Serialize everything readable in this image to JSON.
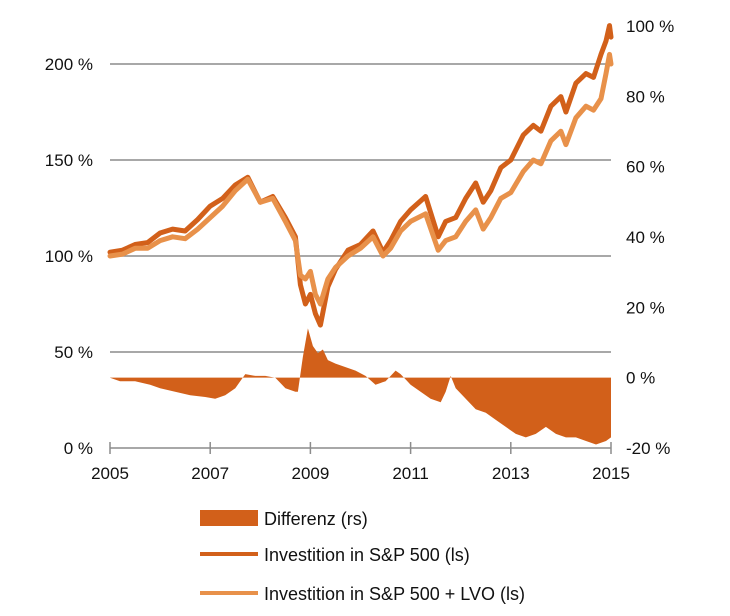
{
  "chart_data": {
    "type": "line",
    "title": "",
    "xlabel": "",
    "ylabel_left": "",
    "ylabel_right": "",
    "x_ticks": [
      "2005",
      "2007",
      "2009",
      "2011",
      "2013",
      "2015"
    ],
    "x_range": [
      2005,
      2015
    ],
    "y_left": {
      "range": [
        0,
        200
      ],
      "ticks": [
        0,
        50,
        100,
        150,
        200
      ],
      "tick_labels": [
        "0 %",
        "50 %",
        "100 %",
        "150 %",
        "200 %"
      ]
    },
    "y_right": {
      "range": [
        -20,
        100
      ],
      "ticks": [
        -20,
        0,
        20,
        40,
        60,
        80,
        100
      ],
      "tick_labels": [
        "-20 %",
        "0 %",
        "20 %",
        "40 %",
        "60 %",
        "80 %",
        "100 %"
      ]
    },
    "grid": true,
    "legend_position": "bottom",
    "colors": {
      "differenz": "#D2601A",
      "sp500": "#D2601A",
      "sp500_lvo": "#E8914A",
      "grid": "#8c8c8c",
      "axis": "#8c8c8c"
    },
    "series": [
      {
        "name": "Differenz (rs)",
        "type": "area",
        "axis": "right",
        "x": [
          2005.0,
          2005.2,
          2005.5,
          2005.8,
          2006.0,
          2006.3,
          2006.6,
          2006.9,
          2007.1,
          2007.3,
          2007.5,
          2007.7,
          2007.9,
          2008.1,
          2008.3,
          2008.5,
          2008.7,
          2008.75,
          2008.85,
          2008.95,
          2009.05,
          2009.15,
          2009.25,
          2009.35,
          2009.5,
          2009.7,
          2009.9,
          2010.1,
          2010.3,
          2010.5,
          2010.7,
          2010.8,
          2011.0,
          2011.2,
          2011.4,
          2011.6,
          2011.7,
          2011.8,
          2011.9,
          2012.1,
          2012.3,
          2012.5,
          2012.7,
          2012.9,
          2013.1,
          2013.3,
          2013.5,
          2013.7,
          2013.9,
          2014.1,
          2014.3,
          2014.5,
          2014.7,
          2014.9,
          2015.0
        ],
        "values": [
          0,
          -1,
          -1,
          -2,
          -3,
          -4,
          -5,
          -5.5,
          -6,
          -5,
          -3,
          1,
          0.5,
          0.5,
          0,
          -3,
          -4,
          -4,
          6,
          14,
          9,
          7,
          8,
          5,
          4,
          3,
          2,
          0.5,
          -2,
          -1,
          2,
          1,
          -2,
          -4,
          -6,
          -7,
          -4,
          0.5,
          -3,
          -6,
          -9,
          -10,
          -12,
          -14,
          -16,
          -17,
          -16,
          -14,
          -16,
          -17,
          -17,
          -18,
          -19,
          -18,
          -17
        ]
      },
      {
        "name": "Investition in S&P 500 (ls)",
        "type": "line",
        "axis": "left",
        "x": [
          2005.0,
          2005.25,
          2005.5,
          2005.75,
          2006.0,
          2006.25,
          2006.5,
          2006.75,
          2007.0,
          2007.25,
          2007.5,
          2007.75,
          2008.0,
          2008.25,
          2008.5,
          2008.7,
          2008.8,
          2008.9,
          2009.0,
          2009.1,
          2009.2,
          2009.35,
          2009.5,
          2009.75,
          2010.0,
          2010.25,
          2010.45,
          2010.6,
          2010.8,
          2011.0,
          2011.3,
          2011.55,
          2011.7,
          2011.9,
          2012.1,
          2012.3,
          2012.45,
          2012.6,
          2012.8,
          2013.0,
          2013.25,
          2013.45,
          2013.6,
          2013.8,
          2014.0,
          2014.1,
          2014.3,
          2014.5,
          2014.65,
          2014.8,
          2014.9,
          2014.97,
          2015.0
        ],
        "values": [
          102,
          103,
          106,
          107,
          112,
          114,
          113,
          119,
          126,
          130,
          137,
          141,
          128,
          131,
          120,
          110,
          85,
          75,
          80,
          70,
          64,
          84,
          93,
          103,
          106,
          113,
          102,
          108,
          118,
          124,
          131,
          110,
          118,
          120,
          130,
          138,
          128,
          134,
          146,
          150,
          163,
          168,
          165,
          178,
          183,
          175,
          190,
          195,
          193,
          205,
          212,
          220,
          214
        ]
      },
      {
        "name": "Investition in S&P 500 + LVO (ls)",
        "type": "line",
        "axis": "left",
        "x": [
          2005.0,
          2005.25,
          2005.5,
          2005.75,
          2006.0,
          2006.25,
          2006.5,
          2006.75,
          2007.0,
          2007.25,
          2007.5,
          2007.75,
          2008.0,
          2008.25,
          2008.5,
          2008.7,
          2008.8,
          2008.9,
          2009.0,
          2009.1,
          2009.2,
          2009.35,
          2009.5,
          2009.75,
          2010.0,
          2010.25,
          2010.45,
          2010.6,
          2010.8,
          2011.0,
          2011.3,
          2011.55,
          2011.7,
          2011.9,
          2012.1,
          2012.3,
          2012.45,
          2012.6,
          2012.8,
          2013.0,
          2013.25,
          2013.45,
          2013.6,
          2013.8,
          2014.0,
          2014.1,
          2014.3,
          2014.5,
          2014.65,
          2014.8,
          2014.9,
          2014.97,
          2015.0
        ],
        "values": [
          100,
          101,
          104,
          104,
          108,
          110,
          109,
          114,
          120,
          126,
          134,
          140,
          128,
          130,
          118,
          108,
          90,
          88,
          92,
          80,
          75,
          88,
          94,
          100,
          104,
          110,
          100,
          104,
          113,
          118,
          122,
          103,
          108,
          110,
          118,
          124,
          114,
          120,
          130,
          133,
          144,
          150,
          148,
          160,
          165,
          158,
          172,
          178,
          176,
          182,
          195,
          205,
          200
        ]
      }
    ],
    "legend": [
      {
        "label": "Differenz (rs)",
        "kind": "area"
      },
      {
        "label": "Investition in S&P 500 (ls)",
        "kind": "line"
      },
      {
        "label": "Investition in S&P 500 + LVO (ls)",
        "kind": "line"
      }
    ]
  }
}
